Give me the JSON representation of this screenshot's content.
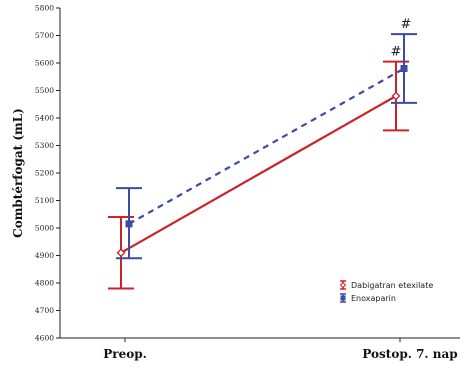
{
  "chart_data": {
    "type": "line",
    "categories": [
      "Preop.",
      "Postop. 7. nap"
    ],
    "ylabel": "Combtérfogat (mL)",
    "ylim": [
      4600,
      5800
    ],
    "yticks": [
      4600,
      4700,
      4800,
      4900,
      5000,
      5100,
      5200,
      5300,
      5400,
      5500,
      5600,
      5700,
      5800
    ],
    "grid": false,
    "legend_position": "bottom-right",
    "series": [
      {
        "name": "Dabigatran etexilate",
        "color": "#cc2229",
        "line_style": "solid",
        "marker": "diamond",
        "values": [
          4910,
          5480
        ],
        "error_low": [
          4780,
          5355
        ],
        "error_high": [
          5040,
          5605
        ]
      },
      {
        "name": "Enoxaparin",
        "color": "#3d4aa6",
        "line_style": "dashed",
        "marker": "square",
        "values": [
          5015,
          5580
        ],
        "error_low": [
          4890,
          5455
        ],
        "error_high": [
          5145,
          5705
        ]
      }
    ],
    "annotations": [
      "#",
      "#"
    ]
  }
}
